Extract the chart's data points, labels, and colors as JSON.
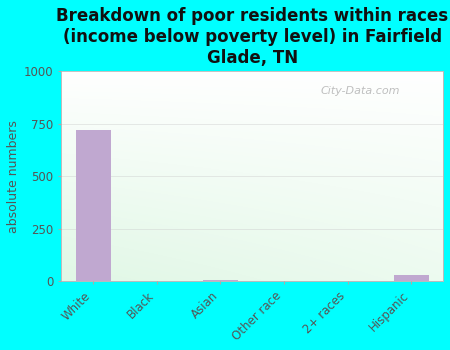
{
  "title": "Breakdown of poor residents within races\n(income below poverty level) in Fairfield\nGlade, TN",
  "categories": [
    "White",
    "Black",
    "Asian",
    "Other race",
    "2+ races",
    "Hispanic"
  ],
  "values": [
    718,
    0,
    5,
    0,
    0,
    30
  ],
  "bar_color": "#c0a8d0",
  "ylabel": "absolute numbers",
  "ylim": [
    0,
    1000
  ],
  "yticks": [
    0,
    250,
    500,
    750,
    1000
  ],
  "background_color": "#00ffff",
  "watermark": "City-Data.com",
  "title_fontsize": 12,
  "axis_label_fontsize": 9,
  "tick_fontsize": 8.5
}
